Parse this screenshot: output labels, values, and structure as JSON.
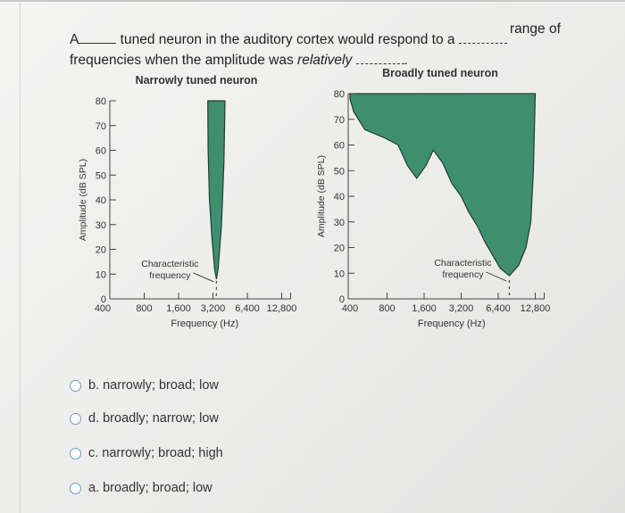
{
  "question": {
    "p1": "A",
    "p2": "tuned neuron in the auditory cortex would respond to a",
    "p3": "range of",
    "p4": "frequencies when the amplitude was",
    "p5": "relatively",
    "p6": "."
  },
  "chart_data": [
    {
      "type": "area",
      "title": "Narrowly tuned neuron",
      "xlabel": "Frequency (Hz)",
      "ylabel": "Amplitude (dB SPL)",
      "x_ticks": [
        "400",
        "800",
        "1,600",
        "3,200",
        "6,400",
        "12,800"
      ],
      "y_ticks": [
        0,
        10,
        20,
        30,
        40,
        50,
        60,
        70,
        80
      ],
      "ylim": [
        0,
        80
      ],
      "annotation": [
        "Characteristic",
        "frequency"
      ],
      "characteristic_frequency_index": 3.1,
      "curve": [
        [
          2.85,
          80
        ],
        [
          2.86,
          60
        ],
        [
          2.9,
          40
        ],
        [
          2.97,
          25
        ],
        [
          3.05,
          12
        ],
        [
          3.1,
          8
        ],
        [
          3.15,
          12
        ],
        [
          3.25,
          30
        ],
        [
          3.32,
          55
        ],
        [
          3.35,
          80
        ]
      ],
      "color": "#3f8f6e"
    },
    {
      "type": "area",
      "title": "Broadly tuned neuron",
      "xlabel": "Frequency (Hz)",
      "ylabel": "Amplitude (dB SPL)",
      "x_ticks": [
        "400",
        "800",
        "1,600",
        "3,200",
        "6,400",
        "12,800"
      ],
      "y_ticks": [
        0,
        10,
        20,
        30,
        40,
        50,
        60,
        70,
        80
      ],
      "ylim": [
        0,
        80
      ],
      "annotation": [
        "Characteristic",
        "frequency"
      ],
      "characteristic_frequency_index": 4.3,
      "curve": [
        [
          0.0,
          78
        ],
        [
          0.1,
          73
        ],
        [
          0.4,
          66
        ],
        [
          0.9,
          63
        ],
        [
          1.3,
          60
        ],
        [
          1.55,
          52
        ],
        [
          1.8,
          47
        ],
        [
          2.05,
          52
        ],
        [
          2.25,
          58
        ],
        [
          2.5,
          53
        ],
        [
          2.75,
          45
        ],
        [
          3.0,
          40
        ],
        [
          3.2,
          34
        ],
        [
          3.45,
          28
        ],
        [
          3.65,
          22
        ],
        [
          3.85,
          17
        ],
        [
          4.05,
          12
        ],
        [
          4.3,
          9
        ],
        [
          4.55,
          13
        ],
        [
          4.75,
          20
        ],
        [
          4.88,
          30
        ],
        [
          4.95,
          50
        ],
        [
          5.0,
          80
        ]
      ],
      "color": "#3f8f6e"
    }
  ],
  "options": [
    {
      "label": "b. narrowly; broad; low"
    },
    {
      "label": "d. broadly; narrow; low"
    },
    {
      "label": "c. narrowly; broad; high"
    },
    {
      "label": "a. broadly; broad; low"
    }
  ]
}
